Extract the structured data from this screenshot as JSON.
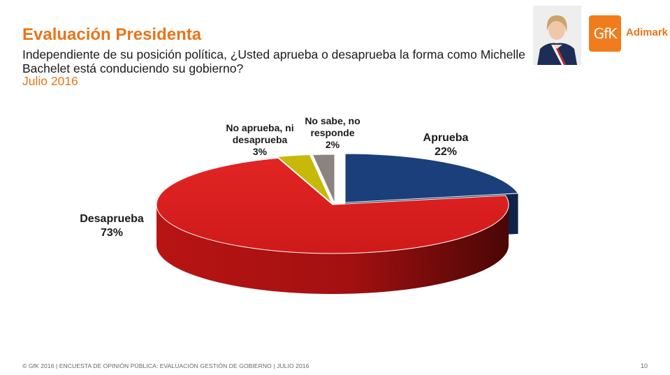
{
  "header": {
    "title": "Evaluación Presidenta",
    "subtitle": "Independiente de su posición política, ¿Usted aprueba o desaprueba la forma como Michelle Bachelet está conduciendo su gobierno?",
    "date": "Julio 2016"
  },
  "logo": {
    "brand": "GfK",
    "name": "Adimark",
    "color": "#f07c1d"
  },
  "chart_data": {
    "type": "pie",
    "categories": [
      "Aprueba",
      "Desaprueba",
      "No aprueba, ni desaprueba",
      "No sabe, no responde"
    ],
    "values": [
      22,
      73,
      3,
      2
    ],
    "value_labels": [
      "22%",
      "73%",
      "3%",
      "2%"
    ],
    "label_lines": [
      [
        "Aprueba",
        "22%"
      ],
      [
        "Desaprueba",
        "73%"
      ],
      [
        "No aprueba, ni",
        "desaprueba",
        "3%"
      ],
      [
        "No sabe, no",
        "responde",
        "2%"
      ]
    ],
    "colors": [
      "#1b3f7a",
      "#d41d1d",
      "#c7b90a",
      "#8b8380"
    ],
    "style": "3d-exploded"
  },
  "footer": {
    "text": "© GfK 2016 | ENCUESTA DE OPINIÓN PÚBLICA: EVALUACIÓN GESTIÓN DE GOBIERNO | JULIO 2016",
    "page_number": "10"
  }
}
